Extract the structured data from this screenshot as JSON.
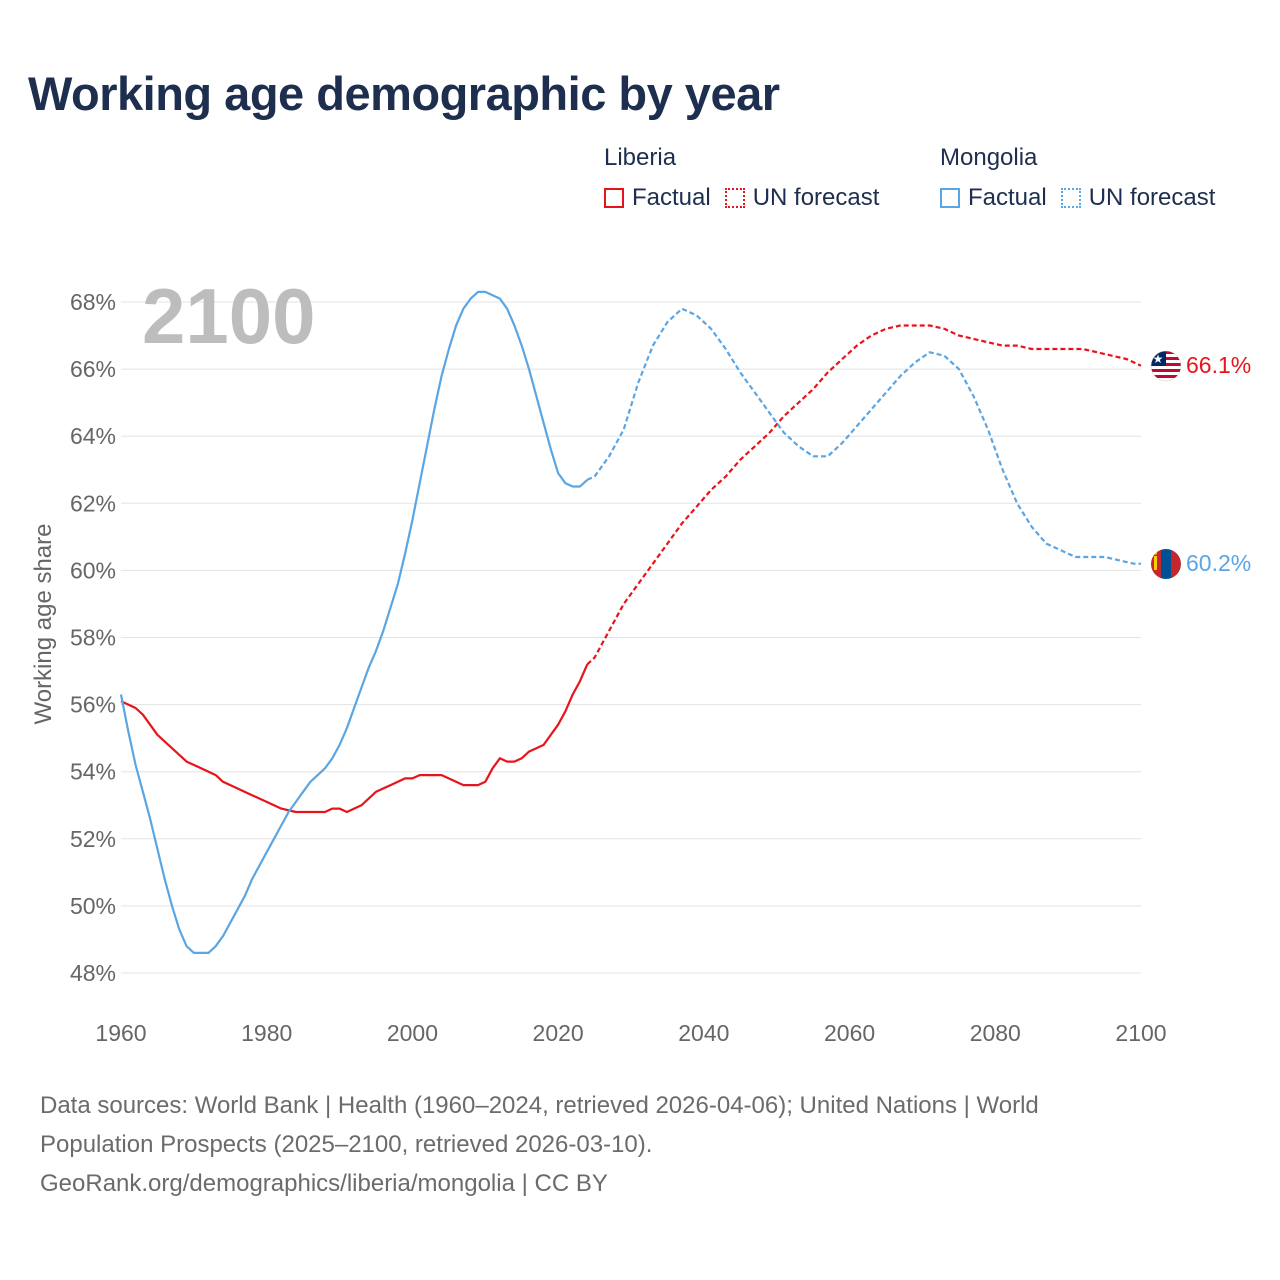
{
  "page": {
    "title": "Working age demographic by year",
    "sources_line1": "Data sources: World Bank | Health (1960–2024, retrieved 2026-04-06); United Nations | World",
    "sources_line2": "Population Prospects (2025–2100, retrieved 2026-03-10).",
    "sources_line3": "GeoRank.org/demographics/liberia/mongolia | CC BY"
  },
  "legend": {
    "groups": [
      {
        "name": "Liberia",
        "factual_label": "Factual",
        "forecast_label": "UN forecast",
        "color": "#e8141c"
      },
      {
        "name": "Mongolia",
        "factual_label": "Factual",
        "forecast_label": "UN forecast",
        "color": "#5aa5e4"
      }
    ]
  },
  "chart_data": {
    "type": "line",
    "title": "Working age demographic by year",
    "year_label": "2100",
    "ylabel": "Working age share",
    "xlim": [
      1960,
      2100
    ],
    "ylim": [
      47,
      69.5
    ],
    "x_ticks": [
      1960,
      1980,
      2000,
      2020,
      2040,
      2060,
      2080,
      2100
    ],
    "x_tick_labels": [
      "1960",
      "1980",
      "2000",
      "2020",
      "2040",
      "2060",
      "2080",
      "2100"
    ],
    "y_ticks": [
      48,
      50,
      52,
      54,
      56,
      58,
      60,
      62,
      64,
      66,
      68
    ],
    "y_tick_labels": [
      "48%",
      "50%",
      "52%",
      "54%",
      "56%",
      "58%",
      "60%",
      "62%",
      "64%",
      "66%",
      "68%"
    ],
    "factual_until": 2024,
    "series": [
      {
        "name": "Liberia",
        "color": "#e8141c",
        "end_label": "66.1%",
        "points": [
          [
            1960,
            56.1
          ],
          [
            1962,
            55.9
          ],
          [
            1963,
            55.7
          ],
          [
            1965,
            55.1
          ],
          [
            1967,
            54.7
          ],
          [
            1969,
            54.3
          ],
          [
            1971,
            54.1
          ],
          [
            1973,
            53.9
          ],
          [
            1974,
            53.7
          ],
          [
            1976,
            53.5
          ],
          [
            1978,
            53.3
          ],
          [
            1980,
            53.1
          ],
          [
            1982,
            52.9
          ],
          [
            1984,
            52.8
          ],
          [
            1986,
            52.8
          ],
          [
            1988,
            52.8
          ],
          [
            1989,
            52.9
          ],
          [
            1990,
            52.9
          ],
          [
            1991,
            52.8
          ],
          [
            1993,
            53.0
          ],
          [
            1995,
            53.4
          ],
          [
            1997,
            53.6
          ],
          [
            1999,
            53.8
          ],
          [
            2000,
            53.8
          ],
          [
            2001,
            53.9
          ],
          [
            2003,
            53.9
          ],
          [
            2004,
            53.9
          ],
          [
            2006,
            53.7
          ],
          [
            2007,
            53.6
          ],
          [
            2009,
            53.6
          ],
          [
            2010,
            53.7
          ],
          [
            2011,
            54.1
          ],
          [
            2012,
            54.4
          ],
          [
            2013,
            54.3
          ],
          [
            2014,
            54.3
          ],
          [
            2015,
            54.4
          ],
          [
            2016,
            54.6
          ],
          [
            2018,
            54.8
          ],
          [
            2020,
            55.4
          ],
          [
            2021,
            55.8
          ],
          [
            2022,
            56.3
          ],
          [
            2023,
            56.7
          ],
          [
            2024,
            57.2
          ],
          [
            2025,
            57.4
          ],
          [
            2027,
            58.2
          ],
          [
            2029,
            59.0
          ],
          [
            2031,
            59.6
          ],
          [
            2033,
            60.2
          ],
          [
            2035,
            60.8
          ],
          [
            2037,
            61.4
          ],
          [
            2039,
            61.9
          ],
          [
            2041,
            62.4
          ],
          [
            2043,
            62.8
          ],
          [
            2045,
            63.3
          ],
          [
            2047,
            63.7
          ],
          [
            2049,
            64.1
          ],
          [
            2051,
            64.6
          ],
          [
            2053,
            65.0
          ],
          [
            2055,
            65.4
          ],
          [
            2057,
            65.9
          ],
          [
            2059,
            66.3
          ],
          [
            2061,
            66.7
          ],
          [
            2063,
            67.0
          ],
          [
            2065,
            67.2
          ],
          [
            2067,
            67.3
          ],
          [
            2069,
            67.3
          ],
          [
            2071,
            67.3
          ],
          [
            2073,
            67.2
          ],
          [
            2075,
            67.0
          ],
          [
            2077,
            66.9
          ],
          [
            2079,
            66.8
          ],
          [
            2081,
            66.7
          ],
          [
            2083,
            66.7
          ],
          [
            2085,
            66.6
          ],
          [
            2087,
            66.6
          ],
          [
            2090,
            66.6
          ],
          [
            2092,
            66.6
          ],
          [
            2094,
            66.5
          ],
          [
            2096,
            66.4
          ],
          [
            2098,
            66.3
          ],
          [
            2100,
            66.1
          ]
        ]
      },
      {
        "name": "Mongolia",
        "color": "#5aa5e4",
        "end_label": "60.2%",
        "points": [
          [
            1960,
            56.3
          ],
          [
            1961,
            55.2
          ],
          [
            1962,
            54.2
          ],
          [
            1963,
            53.4
          ],
          [
            1964,
            52.6
          ],
          [
            1965,
            51.7
          ],
          [
            1966,
            50.8
          ],
          [
            1967,
            50.0
          ],
          [
            1968,
            49.3
          ],
          [
            1969,
            48.8
          ],
          [
            1970,
            48.6
          ],
          [
            1971,
            48.6
          ],
          [
            1972,
            48.6
          ],
          [
            1973,
            48.8
          ],
          [
            1974,
            49.1
          ],
          [
            1975,
            49.5
          ],
          [
            1976,
            49.9
          ],
          [
            1977,
            50.3
          ],
          [
            1978,
            50.8
          ],
          [
            1979,
            51.2
          ],
          [
            1980,
            51.6
          ],
          [
            1981,
            52.0
          ],
          [
            1982,
            52.4
          ],
          [
            1983,
            52.8
          ],
          [
            1984,
            53.1
          ],
          [
            1985,
            53.4
          ],
          [
            1986,
            53.7
          ],
          [
            1987,
            53.9
          ],
          [
            1988,
            54.1
          ],
          [
            1989,
            54.4
          ],
          [
            1990,
            54.8
          ],
          [
            1991,
            55.3
          ],
          [
            1992,
            55.9
          ],
          [
            1993,
            56.5
          ],
          [
            1994,
            57.1
          ],
          [
            1995,
            57.6
          ],
          [
            1996,
            58.2
          ],
          [
            1997,
            58.9
          ],
          [
            1998,
            59.6
          ],
          [
            1999,
            60.5
          ],
          [
            2000,
            61.5
          ],
          [
            2001,
            62.6
          ],
          [
            2002,
            63.7
          ],
          [
            2003,
            64.8
          ],
          [
            2004,
            65.8
          ],
          [
            2005,
            66.6
          ],
          [
            2006,
            67.3
          ],
          [
            2007,
            67.8
          ],
          [
            2008,
            68.1
          ],
          [
            2009,
            68.3
          ],
          [
            2010,
            68.3
          ],
          [
            2011,
            68.2
          ],
          [
            2012,
            68.1
          ],
          [
            2013,
            67.8
          ],
          [
            2014,
            67.3
          ],
          [
            2015,
            66.7
          ],
          [
            2016,
            66.0
          ],
          [
            2017,
            65.2
          ],
          [
            2018,
            64.4
          ],
          [
            2019,
            63.6
          ],
          [
            2020,
            62.9
          ],
          [
            2021,
            62.6
          ],
          [
            2022,
            62.5
          ],
          [
            2023,
            62.5
          ],
          [
            2024,
            62.7
          ],
          [
            2025,
            62.8
          ],
          [
            2027,
            63.4
          ],
          [
            2029,
            64.2
          ],
          [
            2031,
            65.6
          ],
          [
            2033,
            66.7
          ],
          [
            2035,
            67.4
          ],
          [
            2037,
            67.8
          ],
          [
            2039,
            67.6
          ],
          [
            2041,
            67.2
          ],
          [
            2043,
            66.6
          ],
          [
            2045,
            65.9
          ],
          [
            2047,
            65.3
          ],
          [
            2049,
            64.7
          ],
          [
            2051,
            64.1
          ],
          [
            2053,
            63.7
          ],
          [
            2055,
            63.4
          ],
          [
            2057,
            63.4
          ],
          [
            2059,
            63.8
          ],
          [
            2061,
            64.3
          ],
          [
            2063,
            64.8
          ],
          [
            2065,
            65.3
          ],
          [
            2067,
            65.8
          ],
          [
            2069,
            66.2
          ],
          [
            2071,
            66.5
          ],
          [
            2073,
            66.4
          ],
          [
            2075,
            66.0
          ],
          [
            2077,
            65.2
          ],
          [
            2079,
            64.2
          ],
          [
            2081,
            63.0
          ],
          [
            2083,
            62.0
          ],
          [
            2085,
            61.3
          ],
          [
            2087,
            60.8
          ],
          [
            2089,
            60.6
          ],
          [
            2091,
            60.4
          ],
          [
            2093,
            60.4
          ],
          [
            2095,
            60.4
          ],
          [
            2097,
            60.3
          ],
          [
            2099,
            60.2
          ],
          [
            2100,
            60.2
          ]
        ]
      }
    ]
  }
}
